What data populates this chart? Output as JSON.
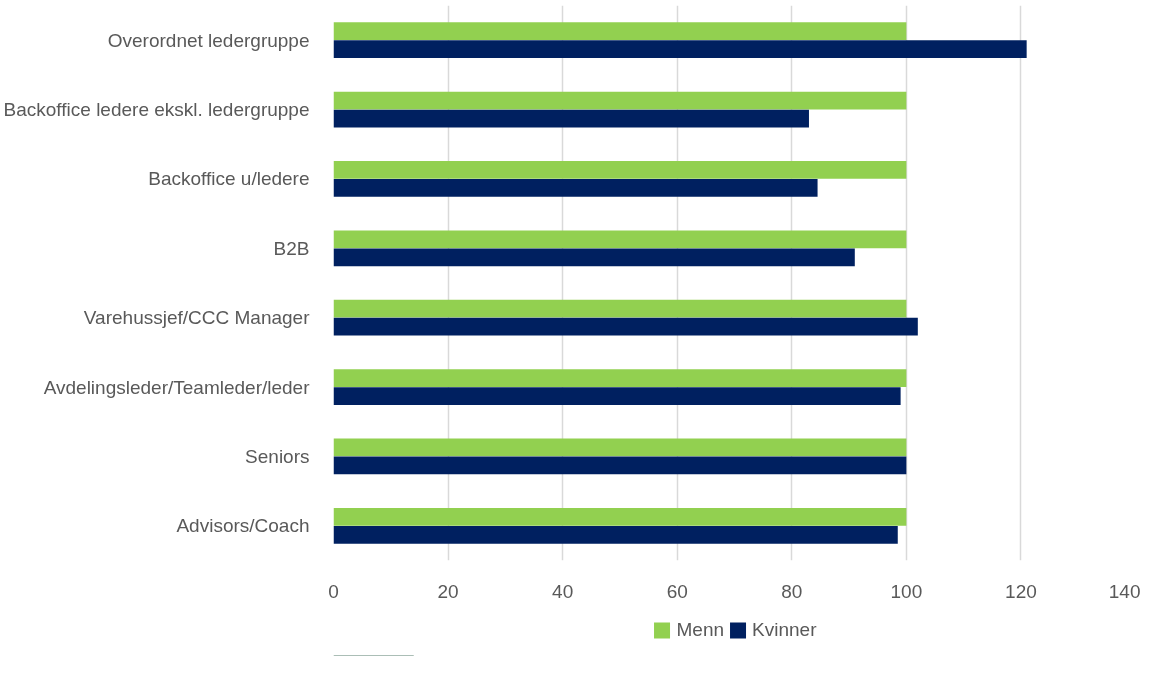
{
  "chart_data": {
    "type": "bar",
    "orientation": "horizontal",
    "categories": [
      "Overordnet ledergruppe",
      "Backoffice ledere ekskl. ledergruppe",
      "Backoffice u/ledere",
      "B2B",
      "Varehussjef/CCC Manager",
      "Avdelingsleder/Teamleder/leder",
      "Seniors",
      "Advisors/Coach"
    ],
    "series": [
      {
        "name": "Menn",
        "color": "#92d050",
        "values": [
          100,
          100,
          100,
          100,
          100,
          100,
          100,
          100
        ]
      },
      {
        "name": "Kvinner",
        "color": "#002060",
        "values": [
          121,
          83,
          84.5,
          91,
          102,
          99,
          100,
          98.5
        ]
      }
    ],
    "xlim": [
      0,
      140
    ],
    "xticks": [
      0,
      20,
      40,
      60,
      80,
      100,
      120,
      140
    ],
    "grid": "x",
    "legend": "bottom"
  }
}
